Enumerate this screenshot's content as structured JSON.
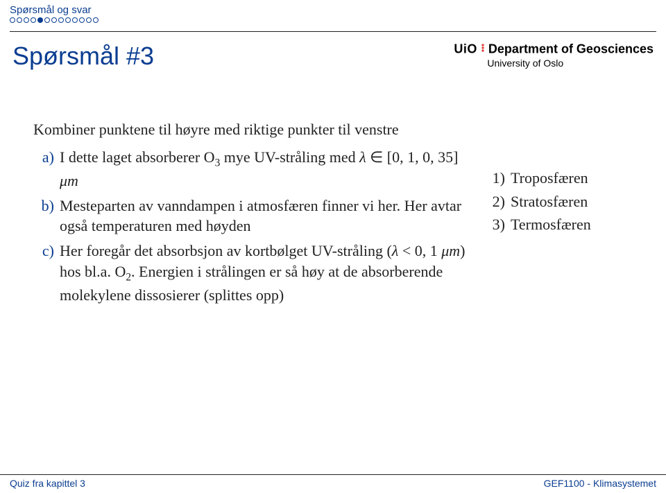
{
  "topbar": {
    "section": "Spørsmål og svar",
    "dots_total": 13,
    "dots_filled_index": 4
  },
  "header": {
    "title": "Spørsmål #3",
    "logo_uio": "UiO",
    "logo_dept": "Department of Geosciences",
    "logo_univ": "University of Oslo"
  },
  "body": {
    "intro": "Kombiner punktene til høyre med riktige punkter til venstre",
    "left": [
      {
        "label": "a)",
        "html": "I dette laget absorberer O<sub>3</sub> mye UV-stråling med <i>λ</i> ∈ [0, 1, 0, 35] <i>μm</i>"
      },
      {
        "label": "b)",
        "html": "Mesteparten av vanndampen i atmosfæren finner vi her. Her avtar også temperaturen med høyden"
      },
      {
        "label": "c)",
        "html": "Her foregår det absorbsjon av kortbølget UV-stråling (<i>λ</i> &lt; 0, 1 <i>μm</i>) hos bl.a. O<sub>2</sub>. Energien i strålingen er så høy at de absorberende molekylene dissosierer (splittes opp)"
      }
    ],
    "right": [
      {
        "label": "1)",
        "text": "Troposfæren"
      },
      {
        "label": "2)",
        "text": "Stratosfæren"
      },
      {
        "label": "3)",
        "text": "Termosfæren"
      }
    ]
  },
  "footer": {
    "left": "Quiz fra kapittel 3",
    "right": "GEF1100 - Klimasystemet"
  },
  "colors": {
    "accent": "#0a3d91",
    "text": "#222222",
    "bg": "#ffffff"
  }
}
